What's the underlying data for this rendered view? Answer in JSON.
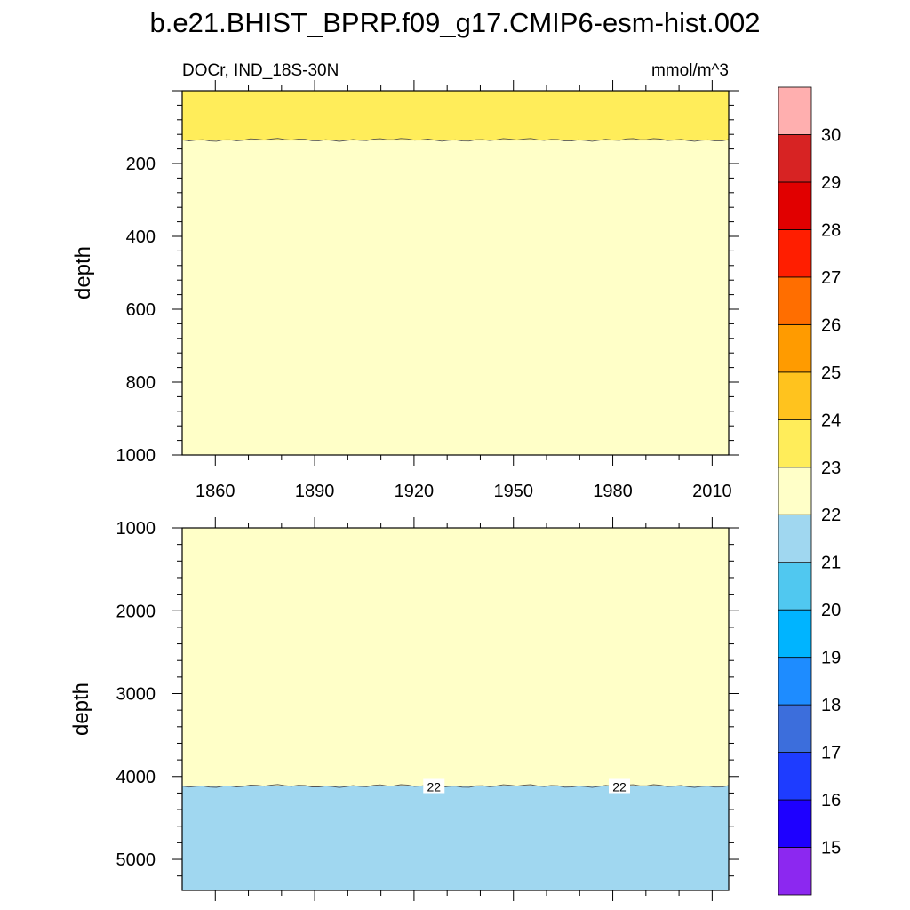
{
  "title": "b.e21.BHIST_BPRP.f09_g17.CMIP6-esm-hist.002",
  "colors": {
    "axis": "#000000",
    "contour_line": "#555555"
  },
  "chart_data": [
    {
      "type": "heatmap",
      "panel": "upper",
      "left_label": "DOCr, IND_18S-30N",
      "right_label": "mmol/m^3",
      "ylabel": "depth",
      "xlim": [
        1850,
        2015
      ],
      "ylim": [
        0,
        1000
      ],
      "y_reversed": true,
      "xticks": [
        "1860",
        "1890",
        "1920",
        "1950",
        "1980",
        "2010"
      ],
      "yticks": [
        "200",
        "400",
        "600",
        "800",
        "1000"
      ],
      "regions": [
        {
          "name": "22-23",
          "color": "#ffffc8",
          "depth_from": 137,
          "depth_to": 1000
        },
        {
          "name": "23-24",
          "color": "#ffed5a",
          "depth_from": 0,
          "depth_to": 137
        }
      ],
      "contours": [
        {
          "level": 22.5,
          "approx_depth": 135
        }
      ]
    },
    {
      "type": "heatmap",
      "panel": "lower",
      "ylabel": "depth",
      "xlim": [
        1850,
        2015
      ],
      "ylim": [
        1000,
        5375
      ],
      "y_reversed": true,
      "yticks": [
        "1000",
        "2000",
        "3000",
        "4000",
        "5000"
      ],
      "regions": [
        {
          "name": "22-23",
          "color": "#ffffc8",
          "depth_from": 1000,
          "depth_to": 4115
        },
        {
          "name": "21-22",
          "color": "#a0d7f0",
          "depth_from": 4115,
          "depth_to": 5375
        }
      ],
      "contours": [
        {
          "level": 22,
          "approx_depth": 4115,
          "labels": [
            {
              "text": "22",
              "year": 1926
            },
            {
              "text": "22",
              "year": 1982
            }
          ]
        }
      ]
    }
  ],
  "colorbar": {
    "labels": [
      "15",
      "16",
      "17",
      "18",
      "19",
      "20",
      "21",
      "22",
      "23",
      "24",
      "25",
      "26",
      "27",
      "28",
      "29",
      "30"
    ],
    "colors": [
      "#8c28f0",
      "#1e00ff",
      "#1e3cff",
      "#3c6edc",
      "#1e8cff",
      "#00b4ff",
      "#50c8f0",
      "#a0d7f0",
      "#ffffc8",
      "#ffed5a",
      "#ffc31e",
      "#ff9b00",
      "#ff6e00",
      "#ff1e00",
      "#e10000",
      "#d72323",
      "#ffafaf"
    ]
  }
}
